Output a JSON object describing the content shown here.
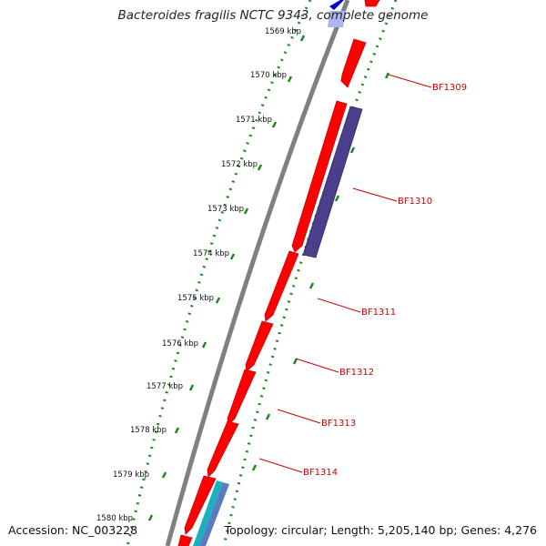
{
  "title": "Bacteroides fragilis NCTC 9343, complete genome",
  "footer": {
    "accession": "Accession: NC_003228",
    "stats": "Topology: circular; Length: 5,205,140 bp; Genes: 4,276"
  },
  "ruler": {
    "ticks": [
      "1569 kbp",
      "1570 kbp",
      "1571 kbp",
      "1572 kbp",
      "1573 kbp",
      "1574 kbp",
      "1575 kbp",
      "1576 kbp",
      "1577 kbp",
      "1578 kbp",
      "1579 kbp",
      "1580 kbp"
    ]
  },
  "gene_labels": [
    "BF1309",
    "BF1310",
    "BF1311",
    "BF1312",
    "BF1313",
    "BF1314"
  ],
  "colors": {
    "cds": "#ff0000",
    "gene": "#4b3f8c",
    "trna": "#1bb0c0",
    "other": "#0000cc",
    "backbone": "#808080",
    "tick": "#1b8a1b",
    "label": "#cc0000"
  }
}
